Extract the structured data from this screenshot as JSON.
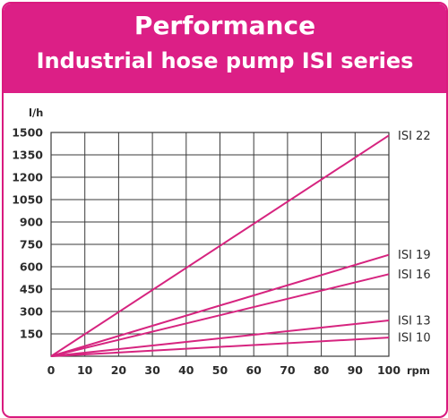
{
  "header": {
    "title": "Performance",
    "subtitle": "Industrial hose pump ISI series"
  },
  "colors": {
    "accent": "#dc1f86",
    "line": "#d6247f",
    "grid": "#3a3a3a"
  },
  "chart_data": {
    "type": "line",
    "title": "Performance",
    "subtitle": "Industrial hose pump ISI series",
    "xlabel": "rpm",
    "ylabel": "l/h",
    "xlim": [
      0,
      100
    ],
    "ylim": [
      0,
      1500
    ],
    "x_ticks": [
      0,
      10,
      20,
      30,
      40,
      50,
      60,
      70,
      80,
      90,
      100
    ],
    "y_ticks": [
      150,
      300,
      450,
      600,
      750,
      900,
      1050,
      1200,
      1350,
      1500
    ],
    "grid": true,
    "series": [
      {
        "name": "ISI 22",
        "x": [
          0,
          100
        ],
        "y": [
          0,
          1480
        ]
      },
      {
        "name": "ISI 19",
        "x": [
          0,
          100
        ],
        "y": [
          0,
          680
        ]
      },
      {
        "name": "ISI 16",
        "x": [
          0,
          100
        ],
        "y": [
          0,
          550
        ]
      },
      {
        "name": "ISI 13",
        "x": [
          0,
          100
        ],
        "y": [
          0,
          240
        ]
      },
      {
        "name": "ISI 10",
        "x": [
          0,
          100
        ],
        "y": [
          0,
          125
        ]
      }
    ]
  }
}
